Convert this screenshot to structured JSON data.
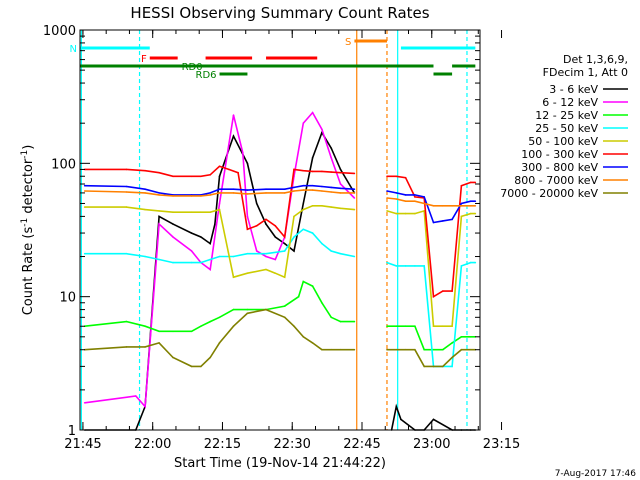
{
  "chart_data": {
    "type": "line",
    "title": "HESSI Observing Summary Count Rates",
    "xlabel": "Start Time (19-Nov-14 21:44:22)",
    "ylabel_main": "Count Rate (s",
    "ylabel_sup": "-1",
    "ylabel_mid": " detector",
    "ylabel_sup2": "-1",
    "ylabel_end": ")",
    "footer": "7-Aug-2017 17:46",
    "x_ticks": [
      "21:45",
      "22:00",
      "22:15",
      "22:30",
      "22:45",
      "23:00",
      "23:15"
    ],
    "y_ticks": [
      "1",
      "10",
      "100",
      "1000"
    ],
    "xlim_minutes": [
      0,
      86
    ],
    "ylim_log": [
      1,
      1000
    ],
    "legend_header": [
      "Det 1,3,6,9,",
      "FDecim 1, Att 0"
    ],
    "series": [
      {
        "name": "3 - 6 keV",
        "color": "#000000",
        "x": [
          1,
          12,
          14,
          17,
          20,
          24,
          26,
          28,
          29,
          30,
          33,
          36,
          38,
          40,
          42,
          44,
          46,
          48,
          50,
          52,
          54,
          56,
          59,
          65,
          67,
          68,
          69,
          72,
          74,
          76,
          80,
          82,
          84,
          85
        ],
        "y": [
          1,
          1,
          1.5,
          40,
          35,
          30,
          28,
          25,
          35,
          80,
          160,
          100,
          50,
          35,
          28,
          25,
          22,
          50,
          110,
          170,
          130,
          90,
          60,
          null,
          1,
          1.5,
          1.2,
          1,
          1,
          1.2,
          1,
          1,
          1,
          1
        ]
      },
      {
        "name": "6 - 12 keV",
        "color": "#ff00ff",
        "x": [
          1,
          12,
          14,
          17,
          20,
          24,
          26,
          28,
          30,
          33,
          35,
          36,
          38,
          40,
          42,
          44,
          46,
          48,
          50,
          52,
          54,
          56,
          59
        ],
        "y": [
          1.6,
          1.8,
          1.5,
          35,
          28,
          22,
          18,
          16,
          50,
          230,
          120,
          40,
          22,
          20,
          19,
          28,
          80,
          200,
          240,
          180,
          110,
          70,
          55
        ]
      },
      {
        "name": "12 - 25 keV",
        "color": "#00ff00",
        "x": [
          1,
          10,
          14,
          17,
          20,
          24,
          26,
          28,
          30,
          33,
          36,
          40,
          44,
          47,
          48,
          50,
          52,
          54,
          56,
          59,
          65,
          66,
          68,
          70,
          72,
          74,
          76,
          78,
          80,
          82,
          84,
          85
        ],
        "y": [
          6,
          6.5,
          6,
          5.5,
          5.5,
          5.5,
          6,
          6.5,
          7,
          8,
          8,
          8,
          8.5,
          10,
          13,
          12,
          9,
          7,
          6.5,
          6.5,
          null,
          6,
          6,
          6,
          6,
          4,
          4,
          4,
          4.5,
          5,
          5,
          5
        ]
      },
      {
        "name": "25 - 50 keV",
        "color": "#00ffff",
        "x": [
          1,
          10,
          14,
          17,
          20,
          24,
          26,
          28,
          30,
          33,
          36,
          40,
          44,
          46,
          48,
          50,
          52,
          54,
          56,
          59,
          65,
          66,
          68,
          70,
          72,
          74,
          76,
          78,
          80,
          82,
          84,
          85
        ],
        "y": [
          21,
          21,
          20,
          19,
          18,
          18,
          18,
          19,
          20,
          20,
          21,
          21,
          22,
          28,
          32,
          30,
          25,
          22,
          21,
          20,
          null,
          18,
          17,
          17,
          17,
          17,
          3,
          3,
          3,
          17,
          18,
          18
        ]
      },
      {
        "name": "50 - 100 keV",
        "color": "#cccc00",
        "x": [
          1,
          10,
          14,
          17,
          20,
          24,
          26,
          28,
          30,
          33,
          36,
          40,
          42,
          44,
          46,
          48,
          50,
          52,
          54,
          56,
          59,
          65,
          66,
          68,
          70,
          72,
          74,
          76,
          78,
          80,
          82,
          84,
          85
        ],
        "y": [
          47,
          47,
          45,
          44,
          43,
          43,
          43,
          43,
          45,
          14,
          15,
          16,
          15,
          14,
          40,
          45,
          48,
          48,
          47,
          46,
          45,
          null,
          44,
          42,
          42,
          42,
          44,
          6,
          6,
          6,
          40,
          42,
          42
        ]
      },
      {
        "name": "100 - 300 keV",
        "color": "#ff0000",
        "x": [
          1,
          10,
          14,
          17,
          20,
          24,
          26,
          28,
          30,
          32,
          34,
          36,
          38,
          40,
          42,
          44,
          46,
          48,
          50,
          52,
          54,
          56,
          59,
          65,
          66,
          68,
          70,
          72,
          74,
          76,
          78,
          80,
          82,
          84,
          85
        ],
        "y": [
          90,
          90,
          88,
          85,
          80,
          80,
          80,
          82,
          95,
          90,
          85,
          32,
          34,
          38,
          34,
          28,
          90,
          88,
          87,
          87,
          86,
          85,
          84,
          null,
          80,
          80,
          78,
          56,
          55,
          10,
          11,
          11,
          68,
          72,
          72
        ]
      },
      {
        "name": "300 - 800 keV",
        "color": "#0000ff",
        "x": [
          1,
          10,
          14,
          17,
          20,
          24,
          26,
          28,
          30,
          33,
          36,
          40,
          44,
          46,
          48,
          50,
          52,
          54,
          56,
          59,
          65,
          66,
          68,
          70,
          72,
          74,
          76,
          78,
          80,
          82,
          84,
          85
        ],
        "y": [
          68,
          67,
          64,
          60,
          58,
          58,
          58,
          60,
          64,
          64,
          63,
          64,
          64,
          66,
          68,
          68,
          67,
          66,
          65,
          64,
          null,
          62,
          60,
          58,
          58,
          56,
          36,
          37,
          38,
          50,
          52,
          52
        ]
      },
      {
        "name": "800 - 7000 keV",
        "color": "#ff8000",
        "x": [
          1,
          10,
          14,
          17,
          20,
          24,
          26,
          28,
          30,
          33,
          36,
          40,
          44,
          46,
          48,
          50,
          52,
          54,
          56,
          59,
          65,
          66,
          68,
          70,
          72,
          74,
          76,
          78,
          80,
          82,
          84,
          85
        ],
        "y": [
          62,
          61,
          60,
          58,
          57,
          57,
          57,
          58,
          60,
          60,
          59,
          60,
          60,
          62,
          63,
          63,
          62,
          61,
          60,
          60,
          null,
          55,
          54,
          52,
          52,
          50,
          48,
          48,
          48,
          48,
          48,
          48
        ]
      },
      {
        "name": "7000 - 20000 keV",
        "color": "#808000",
        "x": [
          1,
          10,
          14,
          17,
          20,
          24,
          26,
          28,
          30,
          33,
          36,
          40,
          44,
          46,
          48,
          50,
          52,
          54,
          56,
          59,
          65,
          66,
          68,
          70,
          72,
          74,
          76,
          78,
          80,
          82,
          84,
          85
        ],
        "y": [
          4,
          4.2,
          4.2,
          4.5,
          3.5,
          3,
          3,
          3.5,
          4.5,
          6,
          7.5,
          8,
          7,
          6,
          5,
          4.5,
          4,
          4,
          4,
          4,
          null,
          4,
          4,
          4,
          4,
          3,
          3,
          3,
          3.5,
          4,
          4,
          4
        ]
      }
    ],
    "flags": [
      {
        "label": "N",
        "color": "#00ffff",
        "segments": [
          [
            0,
            15
          ]
        ],
        "level": 0
      },
      {
        "label": "",
        "color": "#00ffff",
        "segments": [
          [
            69,
            85
          ]
        ],
        "level": 0
      },
      {
        "label": "S",
        "color": "#ff8000",
        "segments": [
          [
            59,
            66
          ]
        ],
        "level": -1
      },
      {
        "label": "F",
        "color": "#ff0000",
        "segments": [
          [
            15,
            21
          ],
          [
            27,
            37
          ],
          [
            40,
            51
          ]
        ],
        "level": 1
      },
      {
        "label": "",
        "color": "#008000",
        "segments": [
          [
            0,
            76
          ],
          [
            80,
            85
          ]
        ],
        "level": 2
      },
      {
        "label": "RD0",
        "color": "#008000",
        "segments": [
          [
            27,
            38
          ]
        ],
        "level": 2
      },
      {
        "label": "",
        "color": "#008000",
        "segments": [
          [
            76,
            80
          ]
        ],
        "level": 3
      },
      {
        "label": "RD6",
        "color": "#008000",
        "segments": [
          [
            30,
            36
          ]
        ],
        "level": 3
      }
    ]
  }
}
